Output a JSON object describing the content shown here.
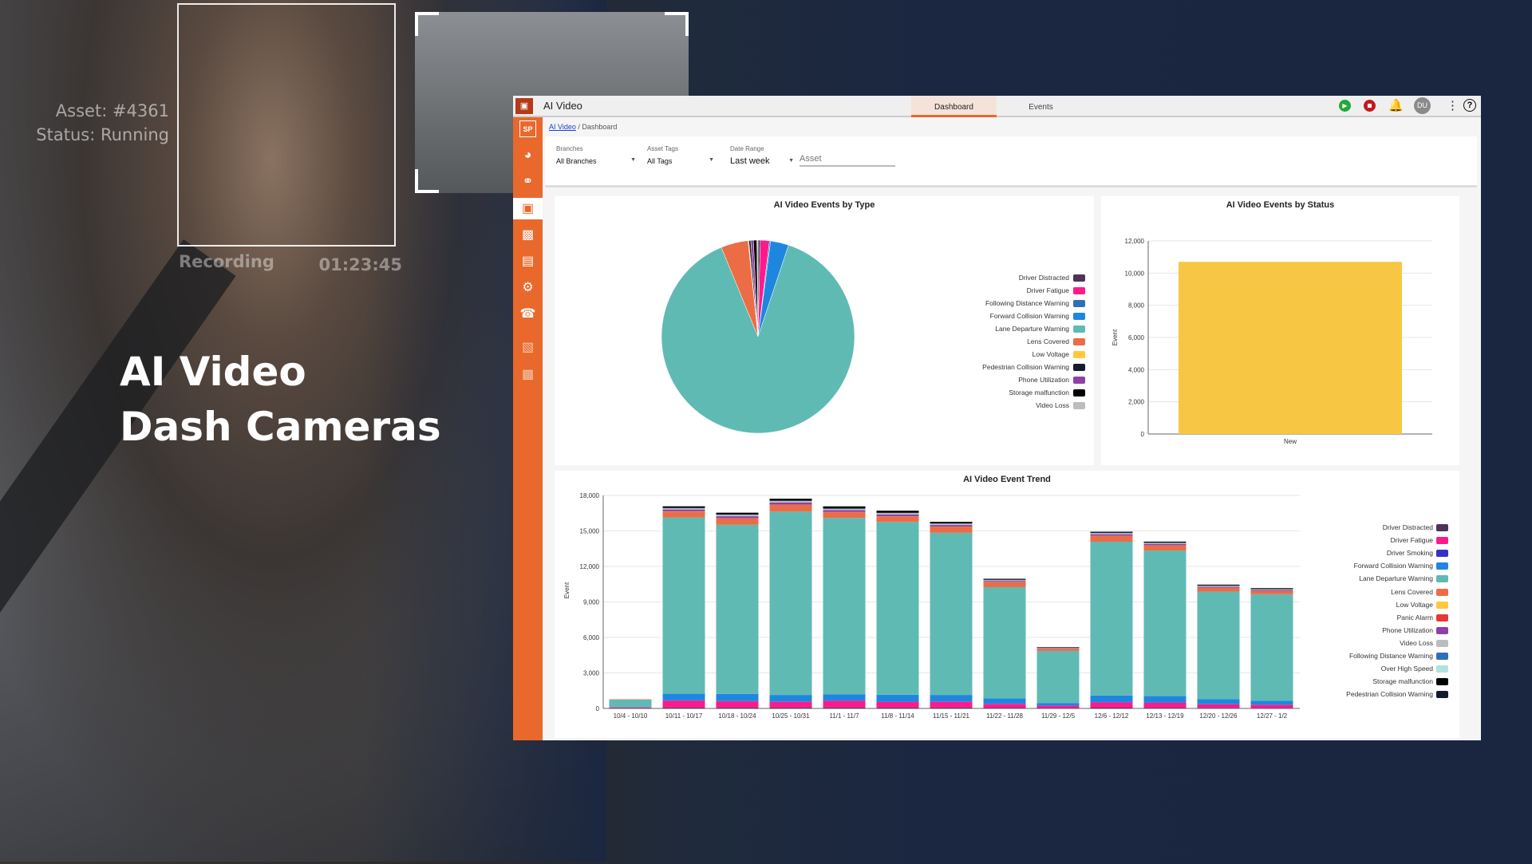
{
  "overlay": {
    "asset": "Asset: #4361",
    "status": "Status: Running",
    "recording": "Recording",
    "timer": "01:23:45",
    "headline1": "AI Video",
    "headline2": "Dash Cameras"
  },
  "app": {
    "title": "AI Video",
    "tabs": [
      {
        "label": "Dashboard",
        "active": true
      },
      {
        "label": "Events",
        "active": false
      }
    ],
    "avatar": "DU",
    "breadcrumb": {
      "link": "AI Video",
      "separator": " / ",
      "current": "Dashboard"
    },
    "filters": {
      "branches_label": "Branches",
      "branches_value": "All Branches",
      "tags_label": "Asset Tags",
      "tags_value": "All Tags",
      "date_label": "Date Range",
      "date_value": "Last week",
      "asset_placeholder": "Asset"
    },
    "sidebar_icons": [
      "sp-logo-icon",
      "map-pin-icon",
      "route-icon",
      "camera-icon",
      "bar-chart-icon",
      "report-icon",
      "gear-icon",
      "support-icon",
      "document-icon",
      "analytics-icon"
    ],
    "accent": "#e8692b"
  },
  "chart_data": [
    {
      "type": "pie",
      "title": "AI Video Events by Type",
      "legend": "right",
      "labels": [
        "Driver Distracted",
        "Driver Fatigue",
        "Following Distance Warning",
        "Forward Collision Warning",
        "Lane Departure Warning",
        "Lens Covered",
        "Low Voltage",
        "Pedestrian Collision Warning",
        "Phone Utilization",
        "Storage malfunction",
        "Video Loss"
      ],
      "colors": [
        "#4e3356",
        "#ff1a8c",
        "#2f6fb8",
        "#1f86e0",
        "#5fbab4",
        "#ec6c45",
        "#ffc83d",
        "#141b2e",
        "#8f3fa6",
        "#000000",
        "#bdbdbd"
      ],
      "values": [
        600,
        2400,
        300,
        4800,
        140000,
        7200,
        200,
        500,
        700,
        900,
        300
      ]
    },
    {
      "type": "bar",
      "title": "AI Video Events by Status",
      "categories": [
        "New"
      ],
      "values": [
        10700
      ],
      "ylabel": "Event",
      "ylim": [
        0,
        12000
      ],
      "yticks": [
        "0",
        "2,000",
        "4,000",
        "6,000",
        "8,000",
        "10,000",
        "12,000"
      ],
      "color": "#f7c744",
      "grid": true
    },
    {
      "type": "bar",
      "stacked": true,
      "title": "AI Video Event Trend",
      "ylabel": "Event",
      "ylim": [
        0,
        18000
      ],
      "grid": true,
      "legend": "right",
      "yticks": [
        "0",
        "3,000",
        "6,000",
        "9,000",
        "12,000",
        "15,000",
        "18,000"
      ],
      "categories": [
        "10/4 - 10/10",
        "10/11 - 10/17",
        "10/18 - 10/24",
        "10/25 - 10/31",
        "11/1 - 11/7",
        "11/8 - 11/14",
        "11/15 - 11/21",
        "11/22 - 11/28",
        "11/29 - 12/5",
        "12/6 - 12/12",
        "12/13 - 12/19",
        "12/20 - 12/26",
        "12/27 - 1/2"
      ],
      "series": [
        {
          "name": "Driver Distracted",
          "color": "#4e3356",
          "values": [
            20,
            80,
            80,
            80,
            80,
            80,
            80,
            60,
            30,
            70,
            60,
            50,
            40
          ]
        },
        {
          "name": "Driver Fatigue",
          "color": "#ff1a8c",
          "values": [
            60,
            580,
            520,
            480,
            560,
            460,
            480,
            320,
            200,
            440,
            420,
            300,
            260
          ]
        },
        {
          "name": "Driver Smoking",
          "color": "#3232c8",
          "values": [
            0,
            20,
            20,
            20,
            20,
            20,
            20,
            10,
            10,
            20,
            20,
            10,
            10
          ]
        },
        {
          "name": "Forward Collision Warning",
          "color": "#1f86e0",
          "values": [
            20,
            560,
            600,
            560,
            540,
            600,
            560,
            460,
            220,
            560,
            540,
            420,
            340
          ]
        },
        {
          "name": "Lane Departure Warning",
          "color": "#5fbab4",
          "values": [
            650,
            14900,
            14300,
            15500,
            14900,
            14600,
            13700,
            9400,
            4400,
            13000,
            12300,
            9100,
            9000
          ]
        },
        {
          "name": "Lens Covered",
          "color": "#ec6c45",
          "values": [
            30,
            500,
            540,
            560,
            480,
            460,
            500,
            420,
            200,
            480,
            420,
            300,
            260
          ]
        },
        {
          "name": "Low Voltage",
          "color": "#ffc83d",
          "values": [
            0,
            10,
            10,
            10,
            10,
            10,
            10,
            10,
            0,
            10,
            10,
            10,
            10
          ]
        },
        {
          "name": "Panic Alarm",
          "color": "#e53935",
          "values": [
            0,
            10,
            10,
            10,
            10,
            10,
            10,
            10,
            0,
            10,
            10,
            10,
            10
          ]
        },
        {
          "name": "Phone Utilization",
          "color": "#8f3fa6",
          "values": [
            0,
            150,
            160,
            180,
            160,
            150,
            140,
            90,
            40,
            130,
            110,
            90,
            80
          ]
        },
        {
          "name": "Video Loss",
          "color": "#bdbdbd",
          "values": [
            0,
            100,
            120,
            120,
            100,
            110,
            100,
            70,
            30,
            90,
            80,
            70,
            60
          ]
        },
        {
          "name": "Following Distance Warning",
          "color": "#2f6fb8",
          "values": [
            0,
            20,
            20,
            20,
            20,
            20,
            20,
            10,
            10,
            20,
            20,
            10,
            10
          ]
        },
        {
          "name": "Over High Speed",
          "color": "#b2e2e0",
          "values": [
            0,
            10,
            10,
            10,
            10,
            10,
            10,
            10,
            0,
            10,
            10,
            10,
            10
          ]
        },
        {
          "name": "Storage malfunction",
          "color": "#000000",
          "values": [
            0,
            130,
            140,
            160,
            170,
            170,
            120,
            80,
            40,
            80,
            80,
            70,
            70
          ]
        },
        {
          "name": "Pedestrian Collision Warning",
          "color": "#141b2e",
          "values": [
            0,
            20,
            20,
            20,
            20,
            20,
            20,
            10,
            10,
            20,
            20,
            10,
            10
          ]
        }
      ]
    }
  ]
}
